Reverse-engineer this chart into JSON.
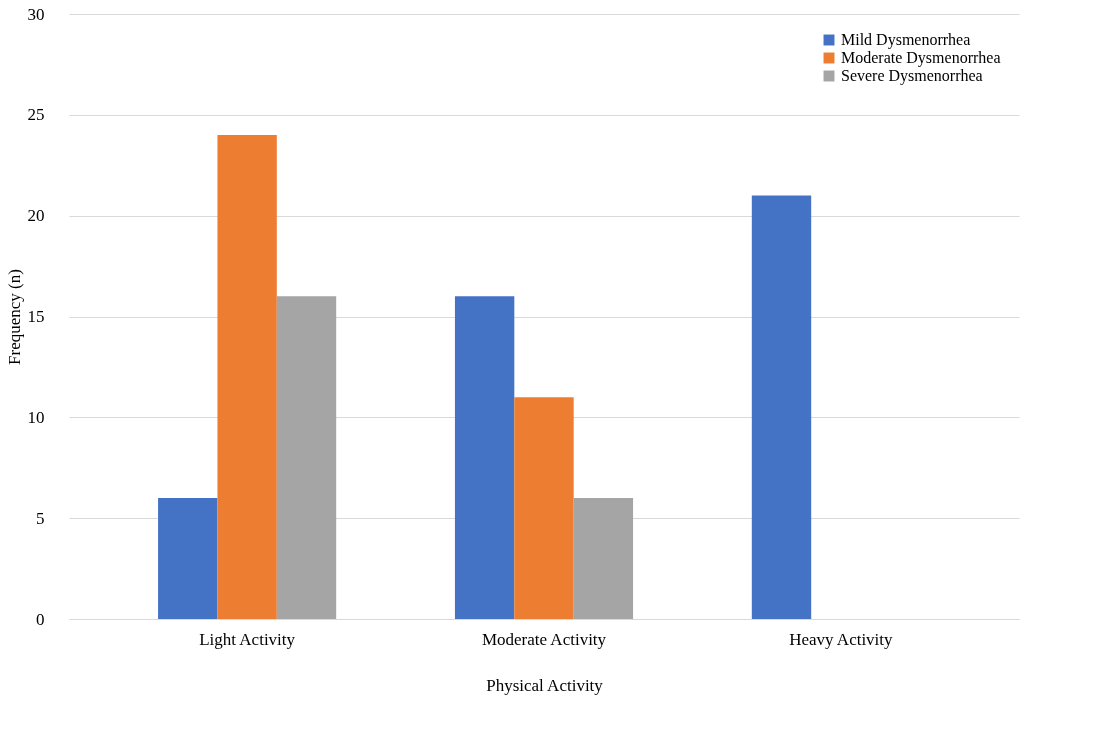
{
  "chart_data": {
    "type": "bar",
    "xlabel": "Physical Activity",
    "ylabel": "Frequency (n)",
    "categories": [
      "Light Activity",
      "Moderate Activity",
      "Heavy Activity"
    ],
    "series": [
      {
        "name": "Mild Dysmenorrhea",
        "color": "#4472c4",
        "values": [
          6,
          16,
          21
        ]
      },
      {
        "name": "Moderate Dysmenorrhea",
        "color": "#ed7d31",
        "values": [
          24,
          11,
          0
        ]
      },
      {
        "name": "Severe Dysmenorrhea",
        "color": "#a5a5a5",
        "values": [
          16,
          6,
          0
        ]
      }
    ],
    "ylim": [
      0,
      30
    ],
    "yticks": [
      0,
      5,
      10,
      15,
      20,
      25,
      30
    ],
    "grid": "y",
    "legend": "top right"
  }
}
